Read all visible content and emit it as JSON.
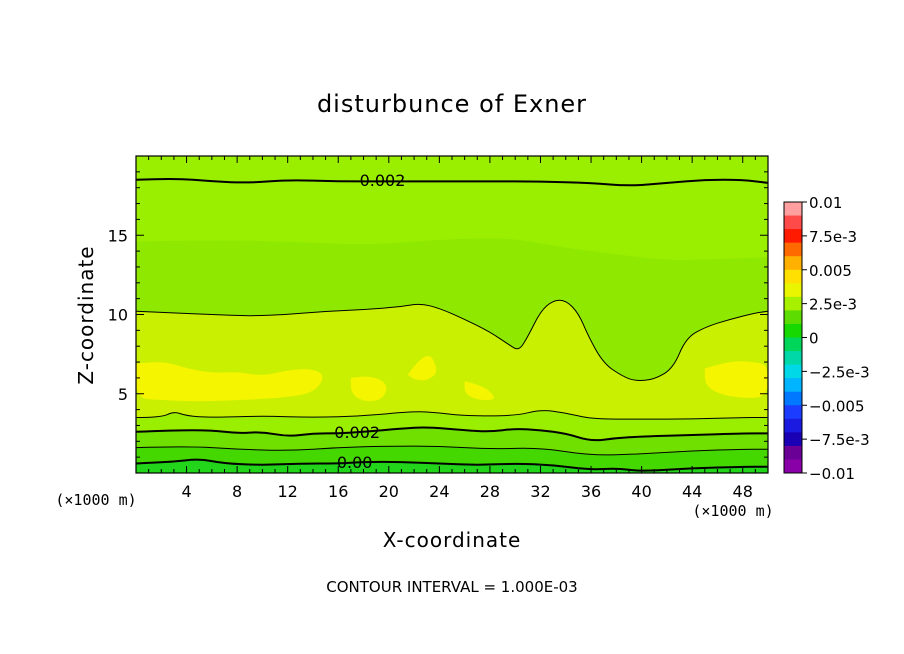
{
  "chart_data": {
    "type": "contour",
    "title": "disturbunce of Exner",
    "xlabel": "X-coordinate",
    "ylabel": "Z-coordinate",
    "x_unit_left": "(×1000 m)",
    "x_unit_right": "(×1000 m)",
    "footer": "CONTOUR INTERVAL = 1.000E-03",
    "xlim": [
      0,
      50
    ],
    "ylim": [
      0,
      20
    ],
    "x_ticks": [
      4,
      8,
      12,
      16,
      20,
      24,
      28,
      32,
      36,
      40,
      44,
      48
    ],
    "x_tick_labels": [
      "4",
      "8",
      "12",
      "16",
      "20",
      "24",
      "28",
      "32",
      "36",
      "40",
      "44",
      "48"
    ],
    "y_ticks": [
      5,
      10,
      15
    ],
    "y_tick_labels": [
      "5",
      "10",
      "15"
    ],
    "contour_labels": [
      {
        "text": "0.002",
        "x": 19.5,
        "z": 18.5
      },
      {
        "text": "0.002",
        "x": 17.5,
        "z": 2.6
      },
      {
        "text": "0.00",
        "x": 17.3,
        "z": 0.7
      }
    ],
    "contours": [
      {
        "level": 0.002,
        "bold": true,
        "points": [
          [
            0,
            18.5
          ],
          [
            3,
            18.6
          ],
          [
            6,
            18.4
          ],
          [
            9,
            18.3
          ],
          [
            12,
            18.5
          ],
          [
            16,
            18.4
          ],
          [
            20,
            18.4
          ],
          [
            24,
            18.4
          ],
          [
            28,
            18.4
          ],
          [
            32,
            18.4
          ],
          [
            36,
            18.3
          ],
          [
            39,
            18.1
          ],
          [
            42,
            18.3
          ],
          [
            45,
            18.5
          ],
          [
            48,
            18.5
          ],
          [
            50,
            18.3
          ]
        ]
      },
      {
        "level": 0.003,
        "bold": false,
        "points": [
          [
            0,
            10.2
          ],
          [
            3,
            10.1
          ],
          [
            6,
            10
          ],
          [
            9,
            9.9
          ],
          [
            12,
            10
          ],
          [
            15,
            10.2
          ],
          [
            18,
            10.3
          ],
          [
            21,
            10.5
          ],
          [
            22.5,
            10.7
          ],
          [
            24,
            10.4
          ],
          [
            26,
            9.7
          ],
          [
            28,
            8.9
          ],
          [
            29.5,
            8.1
          ],
          [
            30.3,
            7.7
          ],
          [
            31,
            8.6
          ],
          [
            32,
            10.2
          ],
          [
            33,
            10.9
          ],
          [
            34,
            10.9
          ],
          [
            35,
            10.1
          ],
          [
            35.8,
            8.6
          ],
          [
            37,
            6.9
          ],
          [
            38.5,
            6.1
          ],
          [
            39.5,
            5.8
          ],
          [
            41,
            5.9
          ],
          [
            42.5,
            6.6
          ],
          [
            43.5,
            8.5
          ],
          [
            45,
            9.2
          ],
          [
            47,
            9.7
          ],
          [
            49,
            10.1
          ],
          [
            50,
            10.2
          ]
        ]
      },
      {
        "level": 0.003,
        "bold": false,
        "points": [
          [
            0,
            3.5
          ],
          [
            2,
            3.5
          ],
          [
            3,
            3.9
          ],
          [
            4,
            3.6
          ],
          [
            6,
            3.5
          ],
          [
            10,
            3.6
          ],
          [
            14,
            3.5
          ],
          [
            18,
            3.6
          ],
          [
            22,
            3.9
          ],
          [
            24,
            3.8
          ],
          [
            26,
            3.6
          ],
          [
            30,
            3.6
          ],
          [
            32,
            4.0
          ],
          [
            34,
            3.8
          ],
          [
            36,
            3.4
          ],
          [
            40,
            3.4
          ],
          [
            44,
            3.4
          ],
          [
            48,
            3.5
          ],
          [
            50,
            3.5
          ]
        ]
      },
      {
        "level": 0.002,
        "bold": true,
        "points": [
          [
            0,
            2.6
          ],
          [
            3,
            2.7
          ],
          [
            6,
            2.7
          ],
          [
            8,
            2.5
          ],
          [
            10,
            2.6
          ],
          [
            12,
            2.3
          ],
          [
            14,
            2.5
          ],
          [
            16,
            2.5
          ],
          [
            18,
            2.6
          ],
          [
            21,
            2.8
          ],
          [
            23,
            2.9
          ],
          [
            26,
            2.7
          ],
          [
            28,
            2.6
          ],
          [
            30,
            2.8
          ],
          [
            32,
            2.7
          ],
          [
            34,
            2.5
          ],
          [
            36,
            2.0
          ],
          [
            38,
            2.2
          ],
          [
            40,
            2.3
          ],
          [
            44,
            2.4
          ],
          [
            48,
            2.5
          ],
          [
            50,
            2.5
          ]
        ]
      },
      {
        "level": 0.001,
        "bold": false,
        "points": [
          [
            0,
            1.6
          ],
          [
            4,
            1.7
          ],
          [
            8,
            1.5
          ],
          [
            12,
            1.4
          ],
          [
            16,
            1.6
          ],
          [
            20,
            1.7
          ],
          [
            24,
            1.7
          ],
          [
            28,
            1.5
          ],
          [
            32,
            1.6
          ],
          [
            36,
            1.1
          ],
          [
            40,
            1.2
          ],
          [
            44,
            1.4
          ],
          [
            48,
            1.5
          ],
          [
            50,
            1.5
          ]
        ]
      },
      {
        "level": 0.0,
        "bold": true,
        "points": [
          [
            0,
            0.6
          ],
          [
            3,
            0.7
          ],
          [
            5,
            0.9
          ],
          [
            7,
            0.6
          ],
          [
            10,
            0.5
          ],
          [
            13,
            0.6
          ],
          [
            16,
            0.6
          ],
          [
            18,
            0.7
          ],
          [
            21,
            0.7
          ],
          [
            24,
            0.6
          ],
          [
            27,
            0.5
          ],
          [
            30,
            0.6
          ],
          [
            33,
            0.5
          ],
          [
            36,
            0.2
          ],
          [
            38,
            0.3
          ],
          [
            40,
            0.1
          ],
          [
            44,
            0.3
          ],
          [
            48,
            0.4
          ],
          [
            50,
            0.4
          ]
        ]
      }
    ],
    "fill_bands": [
      {
        "color": "#9aef00",
        "top": [
          [
            0,
            20
          ],
          [
            50,
            20
          ]
        ]
      },
      {
        "color": "#8fe800",
        "top": [
          [
            0,
            14.6
          ],
          [
            6,
            14.7
          ],
          [
            12,
            14.6
          ],
          [
            18,
            14.4
          ],
          [
            22,
            14.6
          ],
          [
            26,
            14.8
          ],
          [
            30,
            14.8
          ],
          [
            34,
            14.2
          ],
          [
            38,
            13.8
          ],
          [
            42,
            13.4
          ],
          [
            46,
            13.5
          ],
          [
            50,
            13.6
          ]
        ]
      },
      {
        "color": "#c8f000",
        "top": [
          [
            0,
            10.2
          ],
          [
            3,
            10.1
          ],
          [
            6,
            10
          ],
          [
            9,
            9.9
          ],
          [
            12,
            10
          ],
          [
            15,
            10.2
          ],
          [
            18,
            10.3
          ],
          [
            21,
            10.5
          ],
          [
            22.5,
            10.7
          ],
          [
            24,
            10.4
          ],
          [
            26,
            9.7
          ],
          [
            28,
            8.9
          ],
          [
            29.5,
            8.1
          ],
          [
            30.3,
            7.7
          ],
          [
            31,
            8.6
          ],
          [
            32,
            10.2
          ],
          [
            33,
            10.9
          ],
          [
            34,
            10.9
          ],
          [
            35,
            10.1
          ],
          [
            35.8,
            8.6
          ],
          [
            37,
            6.9
          ],
          [
            38.5,
            6.1
          ],
          [
            39.5,
            5.8
          ],
          [
            41,
            5.9
          ],
          [
            42.5,
            6.6
          ],
          [
            43.5,
            8.5
          ],
          [
            45,
            9.2
          ],
          [
            47,
            9.7
          ],
          [
            49,
            10.1
          ],
          [
            50,
            10.2
          ]
        ]
      },
      {
        "color": "#9aef00",
        "top": [
          [
            0,
            3.5
          ],
          [
            2,
            3.5
          ],
          [
            3,
            3.9
          ],
          [
            4,
            3.6
          ],
          [
            6,
            3.5
          ],
          [
            10,
            3.6
          ],
          [
            14,
            3.5
          ],
          [
            18,
            3.6
          ],
          [
            22,
            3.9
          ],
          [
            24,
            3.8
          ],
          [
            26,
            3.6
          ],
          [
            30,
            3.6
          ],
          [
            32,
            4.0
          ],
          [
            34,
            3.8
          ],
          [
            36,
            3.4
          ],
          [
            40,
            3.4
          ],
          [
            44,
            3.4
          ],
          [
            48,
            3.5
          ],
          [
            50,
            3.5
          ]
        ]
      },
      {
        "color": "#6fe000",
        "top": [
          [
            0,
            2.6
          ],
          [
            3,
            2.7
          ],
          [
            6,
            2.7
          ],
          [
            8,
            2.5
          ],
          [
            10,
            2.6
          ],
          [
            12,
            2.3
          ],
          [
            14,
            2.5
          ],
          [
            16,
            2.5
          ],
          [
            18,
            2.6
          ],
          [
            21,
            2.8
          ],
          [
            23,
            2.9
          ],
          [
            26,
            2.7
          ],
          [
            28,
            2.6
          ],
          [
            30,
            2.8
          ],
          [
            32,
            2.7
          ],
          [
            34,
            2.5
          ],
          [
            36,
            2.0
          ],
          [
            38,
            2.2
          ],
          [
            40,
            2.3
          ],
          [
            44,
            2.4
          ],
          [
            48,
            2.5
          ],
          [
            50,
            2.5
          ]
        ]
      },
      {
        "color": "#45d800",
        "top": [
          [
            0,
            1.6
          ],
          [
            4,
            1.7
          ],
          [
            8,
            1.5
          ],
          [
            12,
            1.4
          ],
          [
            16,
            1.6
          ],
          [
            20,
            1.7
          ],
          [
            24,
            1.7
          ],
          [
            28,
            1.5
          ],
          [
            32,
            1.6
          ],
          [
            36,
            1.1
          ],
          [
            40,
            1.2
          ],
          [
            44,
            1.4
          ],
          [
            48,
            1.5
          ],
          [
            50,
            1.5
          ]
        ]
      },
      {
        "color": "#22d51a",
        "top": [
          [
            0,
            0.6
          ],
          [
            3,
            0.7
          ],
          [
            5,
            0.9
          ],
          [
            7,
            0.6
          ],
          [
            10,
            0.5
          ],
          [
            13,
            0.6
          ],
          [
            16,
            0.6
          ],
          [
            18,
            0.7
          ],
          [
            21,
            0.7
          ],
          [
            24,
            0.6
          ],
          [
            27,
            0.5
          ],
          [
            30,
            0.6
          ],
          [
            33,
            0.5
          ],
          [
            36,
            0.2
          ],
          [
            38,
            0.3
          ],
          [
            40,
            0.1
          ],
          [
            44,
            0.3
          ],
          [
            48,
            0.4
          ],
          [
            50,
            0.4
          ]
        ]
      }
    ],
    "high_patches": {
      "color": "#f5f500",
      "regions": [
        [
          [
            0,
            6.9
          ],
          [
            2,
            7.1
          ],
          [
            4,
            6.6
          ],
          [
            6,
            6.3
          ],
          [
            8,
            6.4
          ],
          [
            10,
            6.1
          ],
          [
            12,
            6.5
          ],
          [
            14,
            6.6
          ],
          [
            15,
            6.1
          ],
          [
            14,
            5.0
          ],
          [
            11,
            4.7
          ],
          [
            8,
            4.6
          ],
          [
            5,
            4.5
          ],
          [
            2,
            4.6
          ],
          [
            0,
            4.7
          ]
        ],
        [
          [
            17,
            6.0
          ],
          [
            18.5,
            6.2
          ],
          [
            20,
            5.6
          ],
          [
            19.5,
            4.6
          ],
          [
            18,
            4.5
          ],
          [
            17,
            5.0
          ]
        ],
        [
          [
            21.5,
            6.2
          ],
          [
            23,
            7.9
          ],
          [
            24,
            6.4
          ],
          [
            23,
            5.8
          ],
          [
            22,
            5.9
          ]
        ],
        [
          [
            26,
            5.8
          ],
          [
            27,
            5.6
          ],
          [
            28,
            5.2
          ],
          [
            28.5,
            4.6
          ],
          [
            27,
            4.6
          ],
          [
            26,
            5.0
          ]
        ],
        [
          [
            45,
            6.6
          ],
          [
            47,
            7.1
          ],
          [
            49,
            7.0
          ],
          [
            50,
            6.8
          ],
          [
            50,
            4.8
          ],
          [
            48,
            4.7
          ],
          [
            46,
            5.0
          ],
          [
            45,
            5.6
          ]
        ]
      ]
    },
    "colorbar": {
      "labels": [
        "0.01",
        "7.5e-3",
        "0.005",
        "2.5e-3",
        "0",
        "-2.5e-3",
        "-0.005",
        "-7.5e-3",
        "-0.01"
      ],
      "colors": [
        "#ff9f9f",
        "#ff4a4a",
        "#ff1a00",
        "#ff6a00",
        "#ffb000",
        "#ffe000",
        "#eaf500",
        "#a7f000",
        "#5cdc00",
        "#17d800",
        "#00d65a",
        "#00d8a8",
        "#00d8e8",
        "#00b4ff",
        "#0078ff",
        "#1c3cff",
        "#1a1ae0",
        "#1a00b4",
        "#6a0096",
        "#8a00a8"
      ]
    }
  }
}
